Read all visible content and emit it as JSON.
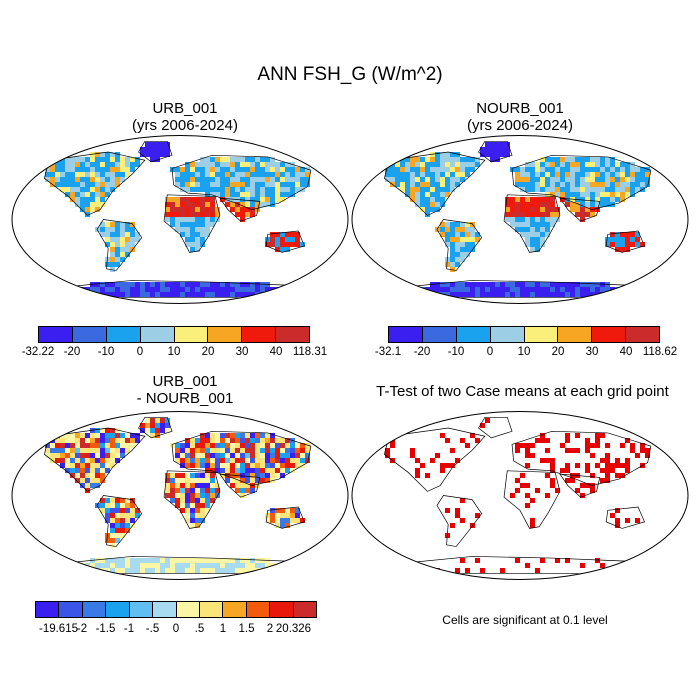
{
  "title": "ANN FSH_G (W/m^2)",
  "panels": {
    "urb": {
      "title_line1": "URB_001",
      "title_line2": "(yrs 2006-2024)",
      "colorbar_labels": [
        "-32.22",
        "-20",
        "-10",
        "0",
        "10",
        "20",
        "30",
        "40",
        "118.31"
      ]
    },
    "nourb": {
      "title_line1": "NOURB_001",
      "title_line2": "(yrs 2006-2024)",
      "colorbar_labels": [
        "-32.1",
        "-20",
        "-10",
        "0",
        "10",
        "20",
        "30",
        "40",
        "118.62"
      ]
    },
    "diff": {
      "title_line1": "URB_001",
      "title_line2": "- NOURB_001",
      "colorbar_labels": [
        "-19.615",
        "-2",
        "-1.5",
        "-1",
        "-.5",
        "0",
        ".5",
        "1",
        "1.5",
        "2",
        "20.326"
      ]
    },
    "ttest": {
      "title_line1": "T-Test of two Case means at each grid point",
      "note": "Cells are significant at 0.1 level"
    }
  },
  "colors": {
    "abs_scale": [
      "#3b1ef0",
      "#3b6ae0",
      "#1aa2ee",
      "#9ccfe6",
      "#f9ef7a",
      "#f6a623",
      "#f01a0c",
      "#cc2b2b"
    ],
    "diff_scale": [
      "#3b1ef0",
      "#3a55e8",
      "#3a7ae6",
      "#1aa2ee",
      "#60bff0",
      "#a8daf0",
      "#fbf6a6",
      "#f9e57a",
      "#f6a623",
      "#f25a0c",
      "#e8180c",
      "#cc2b2b"
    ],
    "sig": "#e60000",
    "ocean": "#ffffff",
    "coast": "#000000"
  }
}
